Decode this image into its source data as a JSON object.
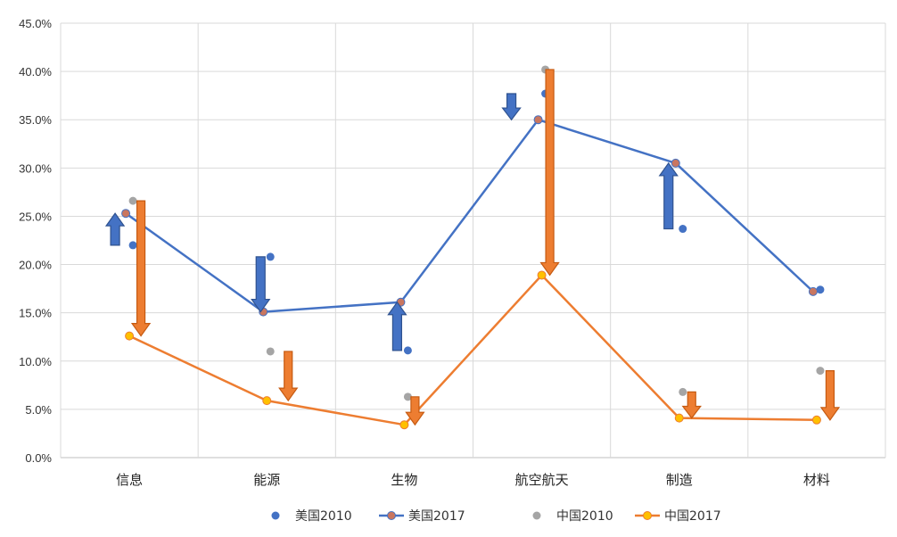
{
  "chart_data": {
    "type": "line",
    "categories": [
      "信息",
      "能源",
      "生物",
      "航空航天",
      "制造",
      "材料"
    ],
    "ylim": [
      0,
      45
    ],
    "ytick_step": 5,
    "ytick_labels": [
      "0.0%",
      "5.0%",
      "10.0%",
      "15.0%",
      "20.0%",
      "25.0%",
      "30.0%",
      "35.0%",
      "40.0%",
      "45.0%"
    ],
    "grid": true,
    "legend_position": "bottom",
    "series": [
      {
        "name": "美国2010",
        "kind": "scatter",
        "color": "#4472c4",
        "values": [
          22.0,
          20.8,
          11.1,
          37.7,
          23.7,
          17.4
        ]
      },
      {
        "name": "美国2017",
        "kind": "line",
        "color": "#4472c4",
        "marker_color": "#c9765f",
        "values": [
          25.3,
          15.1,
          16.1,
          35.0,
          30.5,
          17.2
        ]
      },
      {
        "name": "中国2010",
        "kind": "scatter",
        "color": "#a5a5a5",
        "values": [
          26.6,
          11.0,
          6.3,
          40.2,
          6.8,
          9.0
        ]
      },
      {
        "name": "中国2017",
        "kind": "line",
        "color": "#ed7d31",
        "marker_color": "#ffc000",
        "values": [
          12.6,
          5.9,
          3.4,
          18.9,
          4.1,
          3.9
        ]
      }
    ],
    "annotations": [
      {
        "type": "arrow",
        "series": "美国",
        "color": "#4472c4",
        "category": "信息",
        "from": 22.0,
        "to": 25.3
      },
      {
        "type": "arrow",
        "series": "美国",
        "color": "#4472c4",
        "category": "能源",
        "from": 20.8,
        "to": 15.1
      },
      {
        "type": "arrow",
        "series": "美国",
        "color": "#4472c4",
        "category": "生物",
        "from": 11.1,
        "to": 16.1
      },
      {
        "type": "arrow",
        "series": "美国",
        "color": "#4472c4",
        "category": "航空航天",
        "from": 37.7,
        "to": 35.0
      },
      {
        "type": "arrow",
        "series": "美国",
        "color": "#4472c4",
        "category": "制造",
        "from": 23.7,
        "to": 30.5
      },
      {
        "type": "arrow",
        "series": "中国",
        "color": "#ed7d31",
        "category": "信息",
        "from": 26.6,
        "to": 12.6
      },
      {
        "type": "arrow",
        "series": "中国",
        "color": "#ed7d31",
        "category": "能源",
        "from": 11.0,
        "to": 5.9
      },
      {
        "type": "arrow",
        "series": "中国",
        "color": "#ed7d31",
        "category": "生物",
        "from": 6.3,
        "to": 3.4
      },
      {
        "type": "arrow",
        "series": "中国",
        "color": "#ed7d31",
        "category": "航空航天",
        "from": 40.2,
        "to": 18.9
      },
      {
        "type": "arrow",
        "series": "中国",
        "color": "#ed7d31",
        "category": "制造",
        "from": 6.8,
        "to": 4.1
      },
      {
        "type": "arrow",
        "series": "中国",
        "color": "#ed7d31",
        "category": "材料",
        "from": 9.0,
        "to": 3.9
      }
    ]
  }
}
